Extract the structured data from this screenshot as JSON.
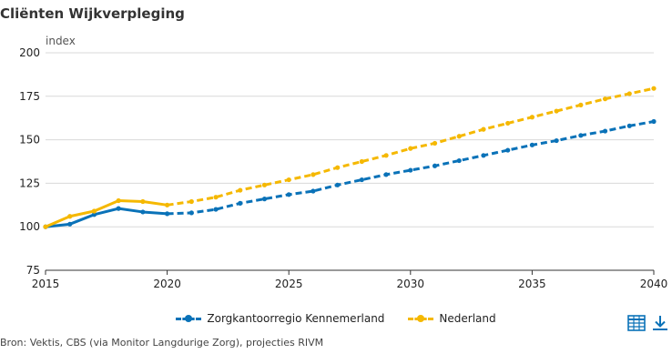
{
  "title": "Cliënten Wijkverpleging",
  "source": "Bron: Vektis, CBS (via Monitor Langdurige Zorg), projecties RIVM",
  "colors": {
    "series1": "#0a72b8",
    "series2": "#f5b800",
    "grid": "#d9d9d9",
    "axis": "#333333"
  },
  "icons": {
    "table": "table-icon",
    "download": "download-icon"
  },
  "chart_data": {
    "type": "line",
    "title": "Cliënten Wijkverpleging",
    "xlabel": "",
    "ylabel": "index",
    "xlim": [
      2015,
      2040
    ],
    "ylim": [
      75,
      200
    ],
    "xticks": [
      2015,
      2020,
      2025,
      2030,
      2035,
      2040
    ],
    "yticks": [
      75,
      100,
      125,
      150,
      175,
      200
    ],
    "grid": true,
    "legend": "bottom",
    "observed_until": 2020,
    "x": [
      2015,
      2016,
      2017,
      2018,
      2019,
      2020,
      2021,
      2022,
      2023,
      2024,
      2025,
      2026,
      2027,
      2028,
      2029,
      2030,
      2031,
      2032,
      2033,
      2034,
      2035,
      2036,
      2037,
      2038,
      2039,
      2040
    ],
    "series": [
      {
        "name": "Zorgkantoorregio Kennemerland",
        "color": "#0a72b8",
        "values": [
          100,
          101.5,
          107,
          110.5,
          108.5,
          107.5,
          108,
          110,
          113.5,
          116,
          118.5,
          120.5,
          124,
          127,
          130,
          132.5,
          135,
          138,
          141,
          144,
          147,
          149.5,
          152.5,
          155,
          158,
          160.5
        ]
      },
      {
        "name": "Nederland",
        "color": "#f5b800",
        "values": [
          100,
          106,
          109,
          115,
          114.5,
          112.5,
          114.5,
          117,
          121,
          124,
          127,
          130,
          134,
          137.5,
          141,
          145,
          148,
          152,
          156,
          159.5,
          163,
          166.5,
          170,
          173.5,
          176.5,
          179.5
        ]
      }
    ]
  }
}
